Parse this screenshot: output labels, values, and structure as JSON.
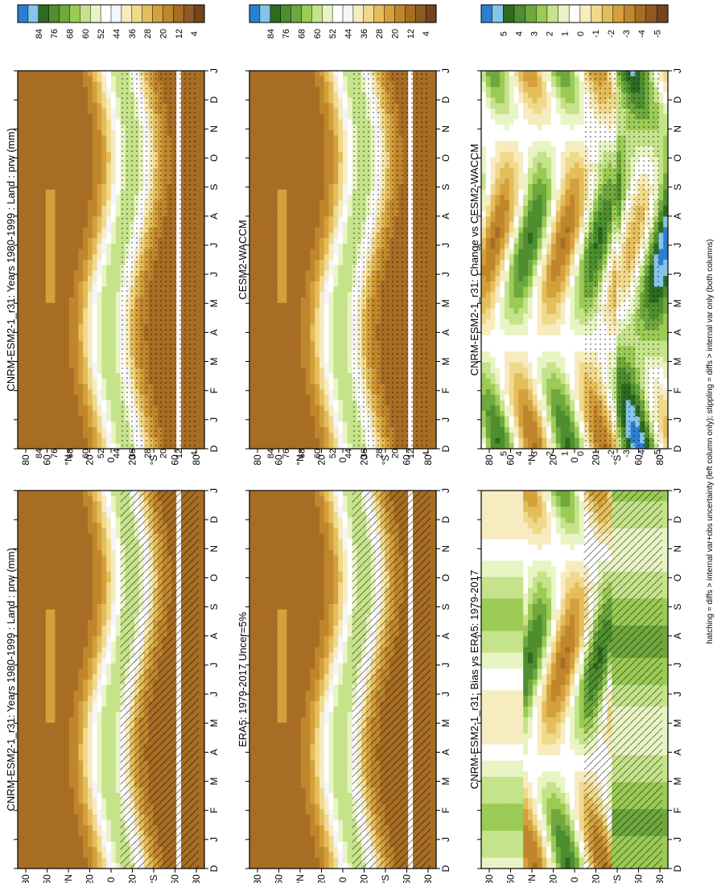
{
  "figure": {
    "footnote": "hatching = diffs > internal var+obs uncertainty (left column only); stippling = diffs > internal var only (both columns)"
  },
  "chart_data": [
    {
      "type": "heatmap",
      "id": "p1",
      "title": "CNRM-ESM2-1_r31: Years 1980-1999 : Land : prw (mm)",
      "kind": "clim",
      "xlabel_ticks": [
        "D",
        "J",
        "F",
        "M",
        "A",
        "M",
        "J",
        "J",
        "A",
        "S",
        "O",
        "N",
        "D",
        "J"
      ],
      "ylabel_ticks": [
        "80",
        "60",
        "°N",
        "20",
        "0",
        "20",
        "°S",
        "60",
        "80"
      ],
      "overlay": "hatch",
      "colorbar_ticks": [
        "84",
        "76",
        "68",
        "60",
        "52",
        "44",
        "36",
        "28",
        "20",
        "12",
        "4"
      ]
    },
    {
      "type": "heatmap",
      "id": "p2",
      "title": "CNRM-ESM2-1_r31: Years 1980-1999 : Land : prw (mm)",
      "kind": "clim",
      "xlabel_ticks": [
        "D",
        "J",
        "F",
        "M",
        "A",
        "M",
        "J",
        "J",
        "A",
        "S",
        "O",
        "N",
        "D",
        "J"
      ],
      "ylabel_ticks": [
        "80",
        "60",
        "°N",
        "20",
        "0",
        "20",
        "°S",
        "60",
        "80"
      ],
      "overlay": "stipple",
      "colorbar_ticks": [
        "84",
        "76",
        "68",
        "60",
        "52",
        "44",
        "36",
        "28",
        "20",
        "12",
        "4"
      ]
    },
    {
      "type": "heatmap",
      "id": "p3",
      "title": "ERA5: 1979-2017 Uncer=5%",
      "kind": "clim",
      "xlabel_ticks": [
        "D",
        "J",
        "F",
        "M",
        "A",
        "M",
        "J",
        "J",
        "A",
        "S",
        "O",
        "N",
        "D",
        "J"
      ],
      "ylabel_ticks": [
        "80",
        "60",
        "°N",
        "20",
        "0",
        "20",
        "°S",
        "60",
        "80"
      ],
      "overlay": "hatch",
      "colorbar_ticks": [
        "84",
        "76",
        "68",
        "60",
        "52",
        "44",
        "36",
        "28",
        "20",
        "12",
        "4"
      ]
    },
    {
      "type": "heatmap",
      "id": "p4",
      "title": "CESM2-WACCM",
      "kind": "clim",
      "xlabel_ticks": [
        "D",
        "J",
        "F",
        "M",
        "A",
        "M",
        "J",
        "J",
        "A",
        "S",
        "O",
        "N",
        "D",
        "J"
      ],
      "ylabel_ticks": [
        "80",
        "60",
        "°N",
        "20",
        "0",
        "20",
        "°S",
        "60",
        "80"
      ],
      "overlay": "stipple",
      "colorbar_ticks": [
        "84",
        "76",
        "68",
        "60",
        "52",
        "44",
        "36",
        "28",
        "20",
        "12",
        "4"
      ]
    },
    {
      "type": "heatmap",
      "id": "p5",
      "title": "CNRM-ESM2-1_r31: Bias vs ERA5: 1979-2017",
      "kind": "diff",
      "xlabel_ticks": [
        "D",
        "J",
        "F",
        "M",
        "A",
        "M",
        "J",
        "J",
        "A",
        "S",
        "O",
        "N",
        "D",
        "J"
      ],
      "ylabel_ticks": [
        "80",
        "60",
        "°N",
        "20",
        "0",
        "20",
        "°S",
        "60",
        "80"
      ],
      "overlay": "hatch",
      "colorbar_ticks": [
        "5",
        "4",
        "3",
        "2",
        "1",
        "0",
        "-1",
        "-2",
        "-3",
        "-4",
        "-5"
      ]
    },
    {
      "type": "heatmap",
      "id": "p6",
      "title": "CNRM-ESM2-1_r31: Change vs CESM2-WACCM",
      "kind": "diff",
      "xlabel_ticks": [
        "D",
        "J",
        "F",
        "M",
        "A",
        "M",
        "J",
        "J",
        "A",
        "S",
        "O",
        "N",
        "D",
        "J"
      ],
      "ylabel_ticks": [
        "80",
        "60",
        "°N",
        "20",
        "0",
        "20",
        "°S",
        "60",
        "80"
      ],
      "overlay": "stipple",
      "colorbar_ticks": [
        "5",
        "4",
        "3",
        "2",
        "1",
        "0",
        "-1",
        "-2",
        "-3",
        "-4",
        "-5"
      ]
    }
  ],
  "colors": {
    "clim_scale": [
      "#2a7fd0",
      "#86c4ec",
      "#2d6b1e",
      "#4e8e2e",
      "#6fa83e",
      "#9bcb54",
      "#c5e38a",
      "#e9f4c4",
      "#ffffff",
      "#f4f4fb",
      "#f7ecc0",
      "#f1d98c",
      "#e4bd5c",
      "#d4a03c",
      "#c0862c",
      "#a86d24",
      "#8e5a20",
      "#74451a"
    ],
    "diff_scale": [
      "#2a7fd0",
      "#86c4ec",
      "#2d6b1e",
      "#4e8e2e",
      "#6fa83e",
      "#9bcb54",
      "#c5e38a",
      "#e9f4c4",
      "#ffffff",
      "#f7ecc0",
      "#f1d98c",
      "#e4bd5c",
      "#d4a03c",
      "#c0862c",
      "#a86d24",
      "#8e5a20",
      "#74451a"
    ]
  }
}
